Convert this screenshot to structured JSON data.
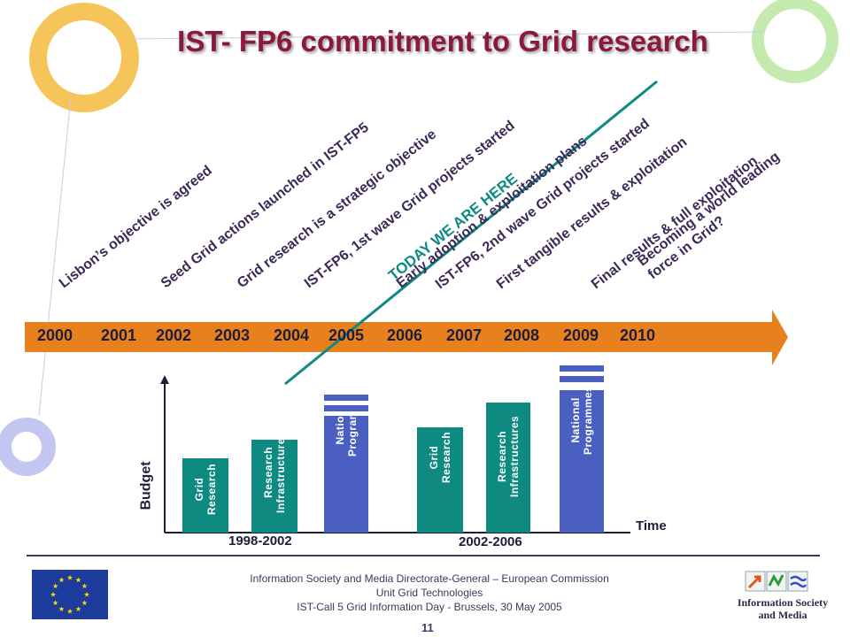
{
  "title": "IST- FP6 commitment to Grid research",
  "timeline": {
    "years": [
      "2000",
      "2001",
      "2002",
      "2003",
      "2004",
      "2005",
      "2006",
      "2007",
      "2008",
      "2009",
      "2010"
    ],
    "events": [
      "Lisbon’s objective is agreed",
      "Seed Grid actions launched in IST-FP5",
      "Grid research is a strategic objective",
      "IST-FP6, 1st wave Grid projects started",
      "Early adoption & exploitation plans",
      "IST-FP6, 2nd wave Grid projects started",
      "First tangible results & exploitation",
      "Final results & full exploitation",
      "Becoming a world leading\nforce in Grid?"
    ],
    "today_label": "TODAY WE ARE HERE"
  },
  "budget": {
    "y_label": "Budget",
    "x_label": "Time",
    "periods": [
      {
        "label": "1998-2002",
        "bars": [
          "Grid\nResearch",
          "Research\nInfrastructures",
          "National\nProgrammes"
        ]
      },
      {
        "label": "2002-2006",
        "bars": [
          "Grid\nResearch",
          "Research\nInfrastructures",
          "National\nProgrammes"
        ]
      }
    ]
  },
  "colors": {
    "teal": "#0e8a80",
    "blue": "#4b5fc0",
    "orange": "#e8801e",
    "title": "#8b1a3a"
  },
  "footer": {
    "line1": "Information Society and Media Directorate-General – European Commission",
    "line2": "Unit Grid Technologies",
    "line3": "IST-Call 5 Grid Information Day - Brussels, 30 May 2005",
    "page": "11",
    "logo_text1": "Information Society",
    "logo_text2": "and Media"
  }
}
